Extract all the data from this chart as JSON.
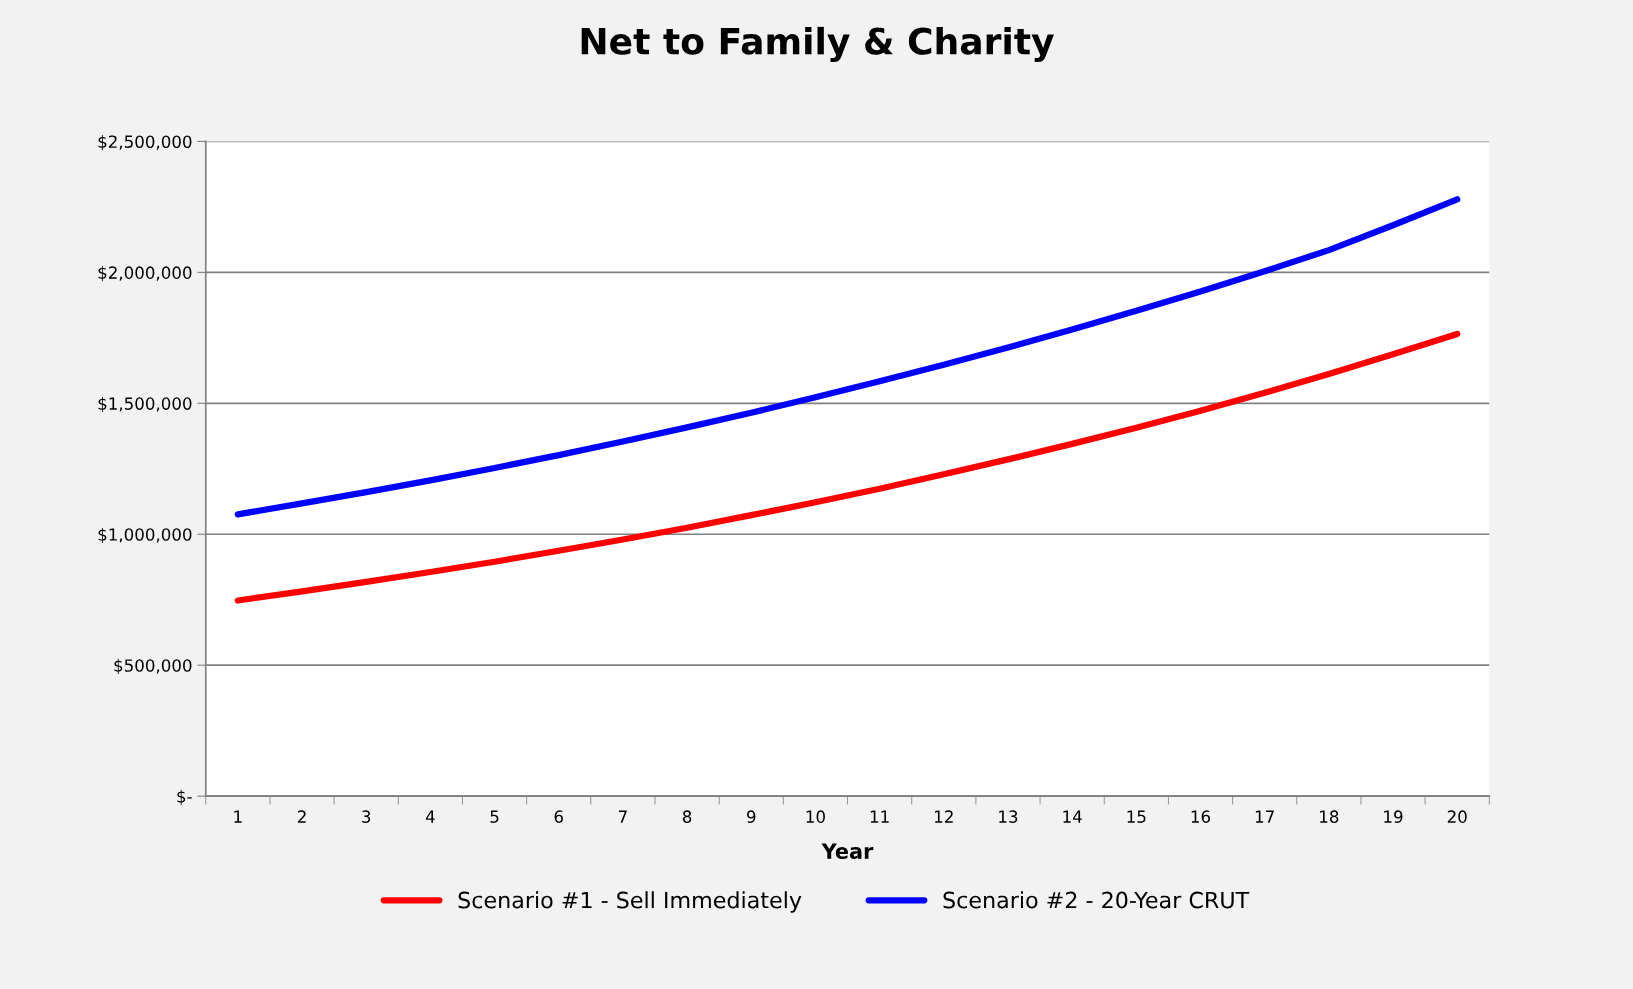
{
  "chart_data": {
    "type": "line",
    "title": "Net to Family & Charity",
    "xlabel": "Year",
    "categories": [
      "1",
      "2",
      "3",
      "4",
      "5",
      "6",
      "7",
      "8",
      "9",
      "10",
      "11",
      "12",
      "13",
      "14",
      "15",
      "16",
      "17",
      "18",
      "19",
      "20"
    ],
    "series": [
      {
        "name": "Scenario #1 - Sell Immediately",
        "color": "#ff0000",
        "values": [
          747000,
          782000,
          818000,
          856000,
          895000,
          937000,
          980000,
          1025000,
          1073000,
          1122000,
          1174000,
          1229000,
          1286000,
          1345000,
          1407000,
          1472000,
          1540000,
          1612000,
          1687000,
          1765000
        ]
      },
      {
        "name": "Scenario #2 - 20-Year CRUT",
        "color": "#0000ff",
        "values": [
          1076000,
          1118000,
          1161000,
          1206000,
          1253000,
          1302000,
          1354000,
          1408000,
          1464000,
          1523000,
          1584000,
          1647000,
          1713000,
          1782000,
          1853000,
          1927000,
          2004000,
          2085000,
          2180000,
          2279000
        ]
      }
    ],
    "ylim": [
      0,
      2500000
    ],
    "yticks": [
      {
        "value": 0,
        "label": "$-"
      },
      {
        "value": 500000,
        "label": "$500,000"
      },
      {
        "value": 1000000,
        "label": "$1,000,000"
      },
      {
        "value": 1500000,
        "label": "$1,500,000"
      },
      {
        "value": 2000000,
        "label": "$2,000,000"
      },
      {
        "value": 2500000,
        "label": "$2,500,000"
      }
    ],
    "grid": "y",
    "legend": "bottom",
    "marker": "none",
    "line_style": "solid"
  }
}
